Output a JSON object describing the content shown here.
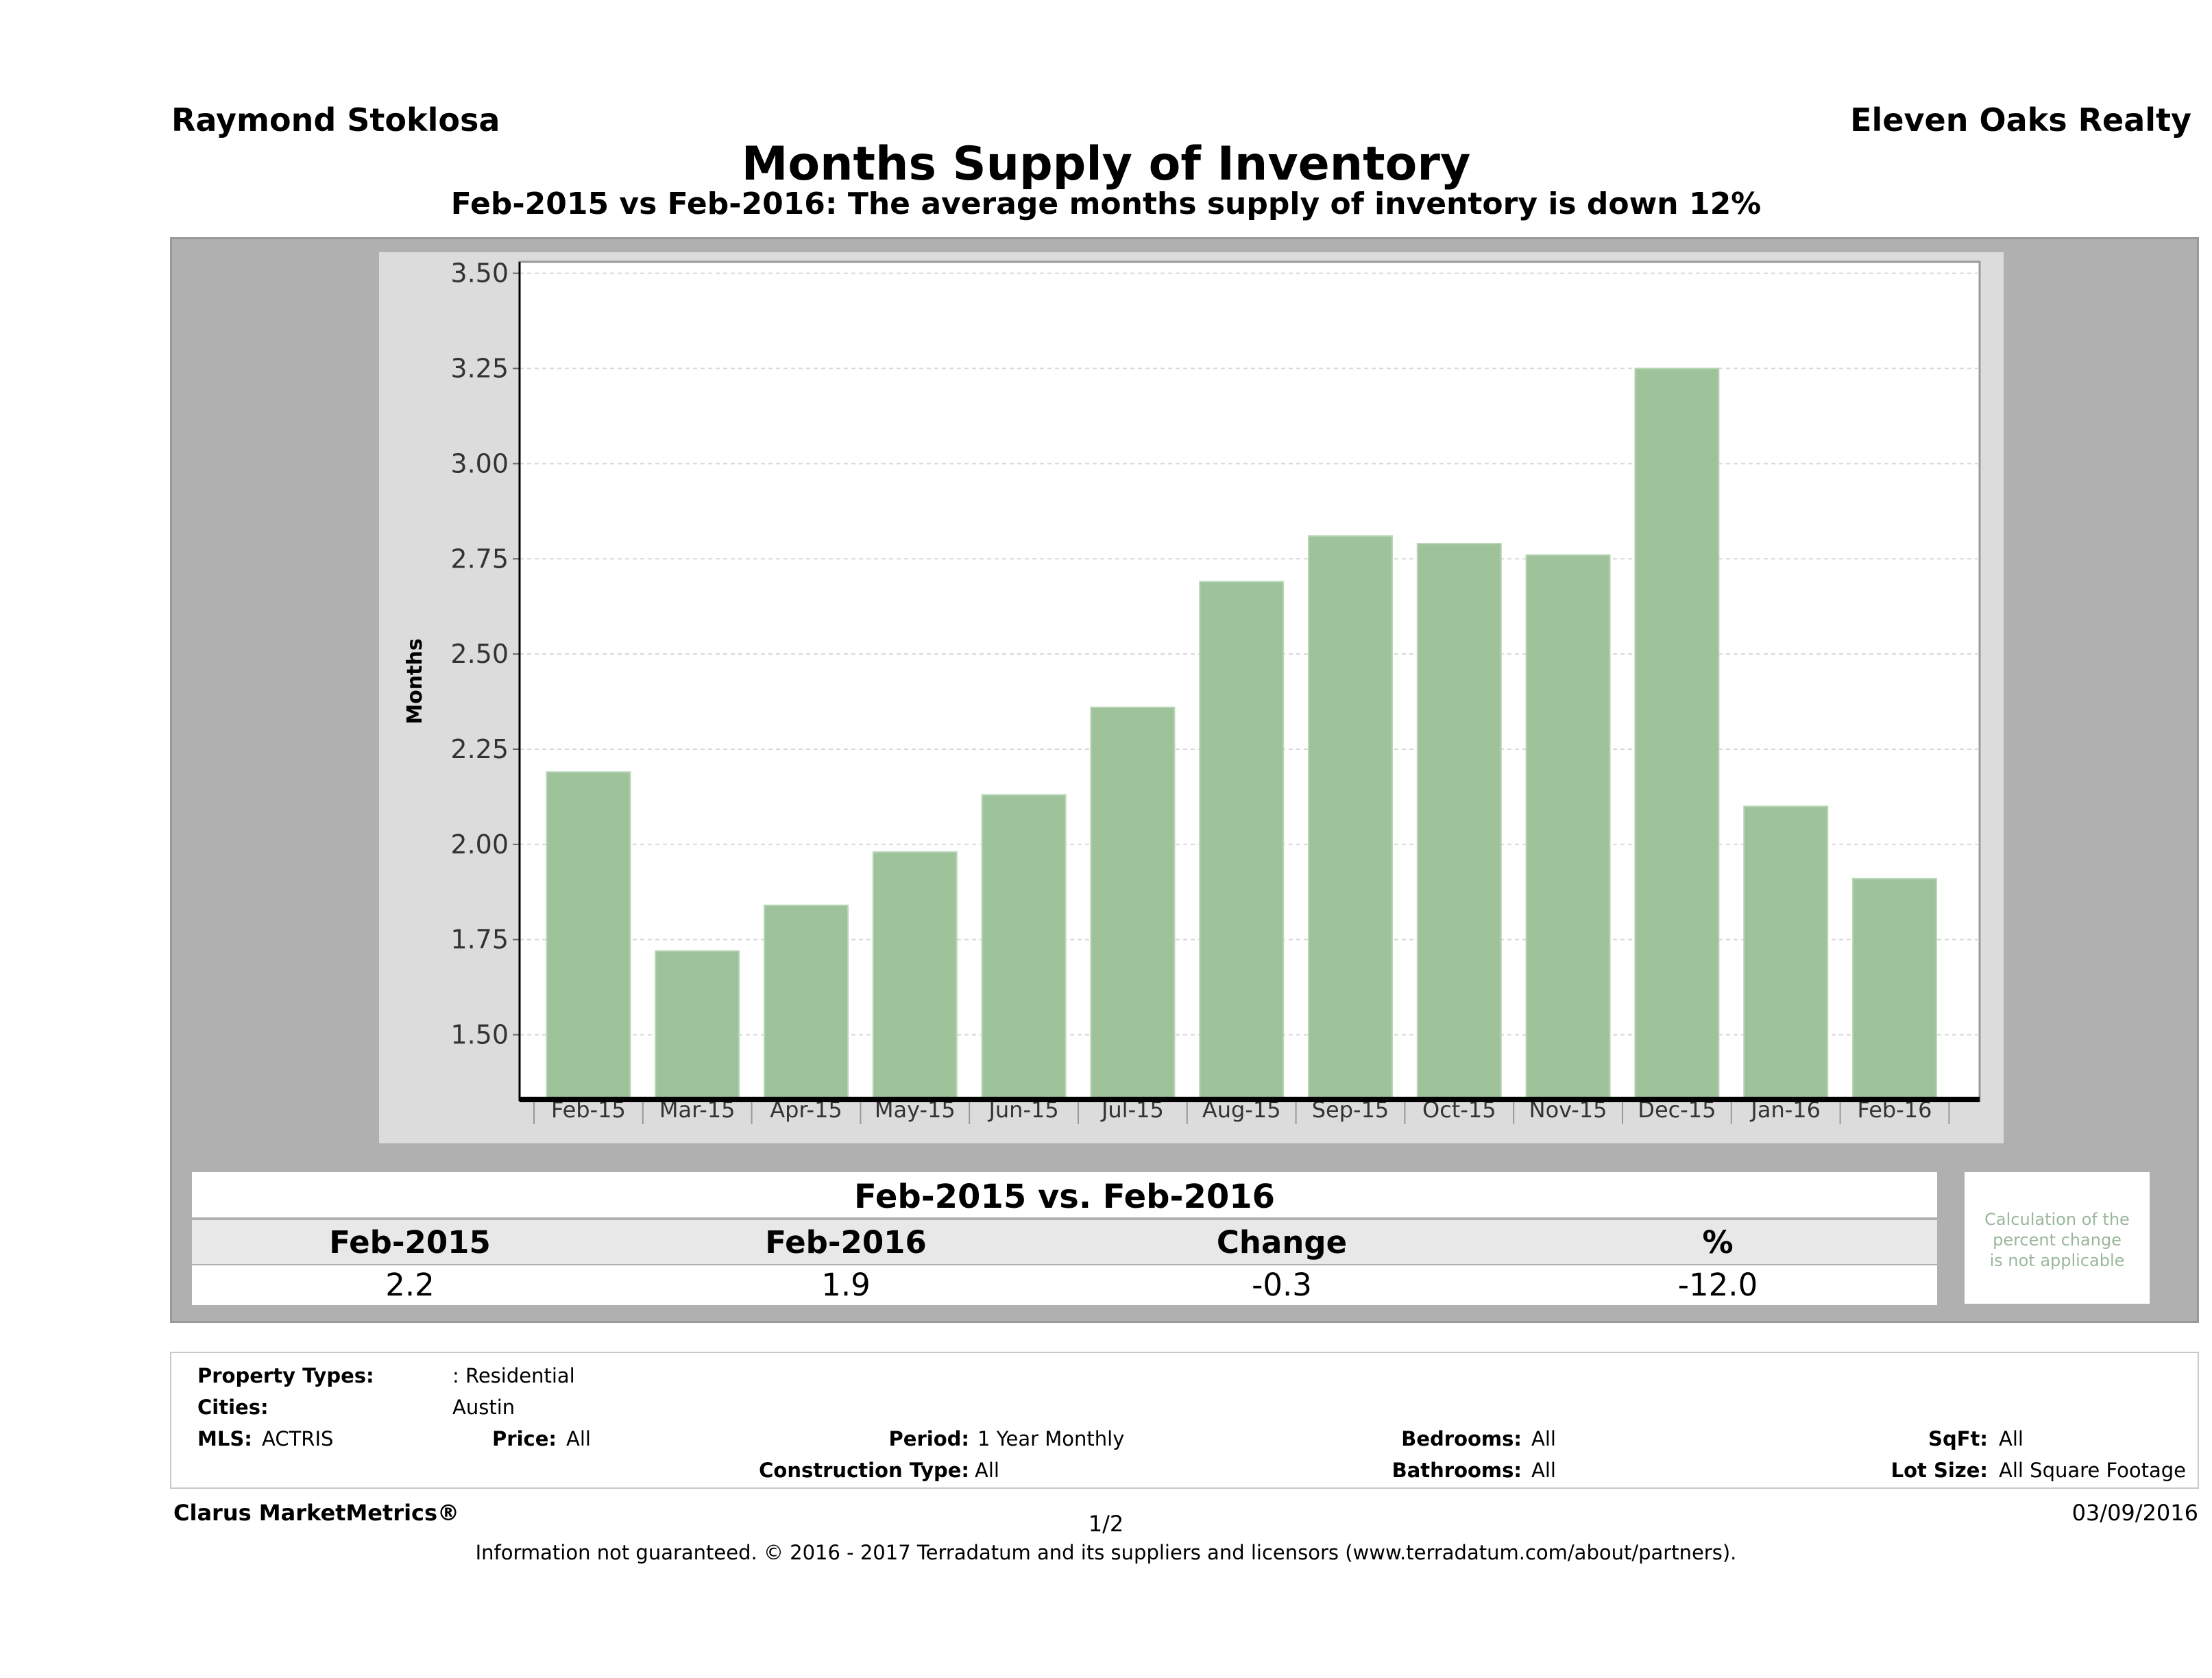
{
  "header": {
    "agent": "Raymond Stoklosa",
    "brokerage": "Eleven Oaks Realty",
    "title": "Months Supply of Inventory",
    "subtitle": "Feb-2015 vs Feb-2016: The average months supply of inventory is down 12%"
  },
  "chart_data": {
    "type": "bar",
    "categories": [
      "Feb-15",
      "Mar-15",
      "Apr-15",
      "May-15",
      "Jun-15",
      "Jul-15",
      "Aug-15",
      "Sep-15",
      "Oct-15",
      "Nov-15",
      "Dec-15",
      "Jan-16",
      "Feb-16"
    ],
    "values": [
      2.19,
      1.72,
      1.84,
      1.98,
      2.13,
      2.36,
      2.69,
      2.81,
      2.79,
      2.76,
      3.25,
      2.1,
      1.91
    ],
    "ylabel": "Months",
    "ylim": [
      1.33,
      3.53
    ],
    "yticks": [
      "1.50",
      "1.75",
      "2.00",
      "2.25",
      "2.50",
      "2.75",
      "3.00",
      "3.25",
      "3.50"
    ],
    "grid": true,
    "bar_color": "#9ec39a"
  },
  "comparison": {
    "heading": "Feb-2015 vs. Feb-2016",
    "labels": [
      "Feb-2015",
      "Feb-2016",
      "Change",
      "%"
    ],
    "values": [
      "2.2",
      "1.9",
      "-0.3",
      "-12.0"
    ],
    "note_lines": [
      "Calculation of the",
      "percent change",
      "is not applicable"
    ]
  },
  "filters": {
    "property_types_label": "Property Types:",
    "property_types_value": ": Residential",
    "cities_label": "Cities:",
    "cities_value": "Austin",
    "mls_label": "MLS:",
    "mls_value": "ACTRIS",
    "price_label": "Price:",
    "price_value": "All",
    "period_label": "Period:",
    "period_value": "1 Year Monthly",
    "construction_label": "Construction Type:",
    "construction_value": "All",
    "bedrooms_label": "Bedrooms:",
    "bedrooms_value": "All",
    "bathrooms_label": "Bathrooms:",
    "bathrooms_value": "All",
    "sqft_label": "SqFt:",
    "sqft_value": "All",
    "lot_label": "Lot Size:",
    "lot_value": "All Square Footage"
  },
  "footer": {
    "product": "Clarus MarketMetrics®",
    "page": "1/2",
    "date": "03/09/2016",
    "disclaimer": "Information not guaranteed. © 2016 - 2017 Terradatum and its suppliers and licensors (www.terradatum.com/about/partners)."
  }
}
